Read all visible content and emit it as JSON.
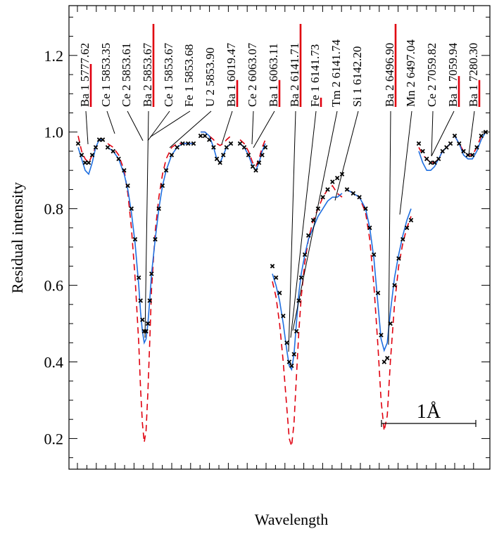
{
  "chart_data": {
    "type": "line",
    "ylabel": "Residual intensity",
    "xlabel": "Wavelength",
    "ylim": [
      0.12,
      1.33
    ],
    "yticks": [
      0.2,
      0.4,
      0.6,
      0.8,
      1.0,
      1.2
    ],
    "ytick_labels": [
      "0.2",
      "0.4",
      "0.6",
      "0.8",
      "1.0",
      "1.2"
    ],
    "scale_bar": "1Å",
    "grid": false,
    "colors": {
      "observed": "#000000",
      "model_solid": "#1f6fe0",
      "model_dashed": "#e0000f",
      "line_marker": "#e0000f"
    },
    "line_ids": [
      {
        "label": "Ba 1  5777.62",
        "strength": 0.5
      },
      {
        "label": "Ce 1  5853.35",
        "strength": 0.0
      },
      {
        "label": "Ce 2  5853.61",
        "strength": 0.0
      },
      {
        "label": "Ba 2  5853.67",
        "strength": 1.0
      },
      {
        "label": "Ce 1  5853.67",
        "strength": 0.0
      },
      {
        "label": "Fe 1  5853.68",
        "strength": 0.0
      },
      {
        "label": "U 2  5853.90",
        "strength": 0.0
      },
      {
        "label": "Ba 1  6019.47",
        "strength": 0.3
      },
      {
        "label": "Ce 2  6063.07",
        "strength": 0.0
      },
      {
        "label": "Ba 1  6063.11",
        "strength": 0.3
      },
      {
        "label": "Ba 2  6141.71",
        "strength": 1.0
      },
      {
        "label": "Fe 1  6141.73",
        "strength": 0.08
      },
      {
        "label": "Tm 2  6141.74",
        "strength": 0.0
      },
      {
        "label": "Si 1  6142.20",
        "strength": 0.0
      },
      {
        "label": "Ba 2  6496.90",
        "strength": 1.0
      },
      {
        "label": "Mn 2  6497.04",
        "strength": 0.0
      },
      {
        "label": "Ce 2  7059.82",
        "strength": 0.0
      },
      {
        "label": "Ba 1  7059.94",
        "strength": 0.35
      },
      {
        "label": "Ba 1  7280.30",
        "strength": 0.3
      }
    ],
    "segments": [
      {
        "x": [
          0.0,
          0.15,
          0.3,
          0.45,
          0.6,
          0.75,
          0.9,
          1.05
        ],
        "observed": [
          0.97,
          0.94,
          0.92,
          0.92,
          0.94,
          0.96,
          0.98,
          0.98
        ],
        "model_solid": [
          0.96,
          0.93,
          0.9,
          0.89,
          0.92,
          0.96,
          0.98,
          0.98
        ],
        "model_dashed": [
          0.99,
          0.95,
          0.93,
          0.92,
          0.94,
          0.96,
          0.98,
          0.98
        ]
      },
      {
        "x": [
          0.0,
          0.3,
          0.6,
          0.9,
          1.1,
          1.3,
          1.5,
          1.7,
          1.8,
          1.9,
          2.0,
          2.1,
          2.2,
          2.3,
          2.4,
          2.6,
          2.8,
          3.0,
          3.2,
          3.5,
          3.8,
          4.1,
          4.4,
          4.7
        ],
        "observed": [
          0.96,
          0.95,
          0.93,
          0.9,
          0.86,
          0.8,
          0.72,
          0.62,
          0.56,
          0.51,
          0.48,
          0.48,
          0.5,
          0.56,
          0.63,
          0.72,
          0.8,
          0.86,
          0.9,
          0.94,
          0.96,
          0.97,
          0.97,
          0.97
        ],
        "model_solid": [
          0.96,
          0.95,
          0.93,
          0.89,
          0.85,
          0.79,
          0.71,
          0.6,
          0.53,
          0.48,
          0.45,
          0.46,
          0.5,
          0.56,
          0.63,
          0.72,
          0.8,
          0.86,
          0.9,
          0.94,
          0.96,
          0.97,
          0.97,
          0.97
        ],
        "model_dashed": [
          0.97,
          0.96,
          0.94,
          0.9,
          0.84,
          0.75,
          0.62,
          0.45,
          0.33,
          0.24,
          0.19,
          0.22,
          0.32,
          0.45,
          0.59,
          0.74,
          0.83,
          0.89,
          0.93,
          0.96,
          0.97,
          0.97,
          0.97,
          0.97
        ]
      },
      {
        "x": [
          0.0,
          0.2,
          0.4,
          0.6,
          0.75,
          0.9,
          1.05,
          1.2,
          1.4
        ],
        "observed": [
          0.99,
          0.99,
          0.98,
          0.96,
          0.93,
          0.92,
          0.94,
          0.96,
          0.97
        ],
        "model_solid": [
          1.0,
          1.0,
          0.99,
          0.96,
          0.93,
          0.92,
          0.94,
          0.96,
          0.97
        ],
        "model_dashed": [
          1.0,
          1.0,
          0.99,
          0.98,
          0.97,
          0.965,
          0.97,
          0.98,
          0.99
        ]
      },
      {
        "x": [
          0.0,
          0.2,
          0.4,
          0.6,
          0.75,
          0.9,
          1.05,
          1.2
        ],
        "observed": [
          0.97,
          0.96,
          0.94,
          0.91,
          0.9,
          0.92,
          0.94,
          0.96
        ],
        "model_solid": [
          0.97,
          0.96,
          0.94,
          0.91,
          0.9,
          0.92,
          0.95,
          0.97
        ],
        "model_dashed": [
          0.98,
          0.97,
          0.95,
          0.92,
          0.91,
          0.93,
          0.96,
          0.98
        ]
      },
      {
        "x": [
          0.0,
          0.15,
          0.3,
          0.45,
          0.6,
          0.7,
          0.8,
          0.9,
          1.0,
          1.1,
          1.2,
          1.35,
          1.5,
          1.7,
          1.9,
          2.1,
          2.3,
          2.5,
          2.7,
          2.9
        ],
        "observed": [
          0.65,
          0.62,
          0.58,
          0.52,
          0.45,
          0.4,
          0.39,
          0.42,
          0.48,
          0.56,
          0.62,
          0.68,
          0.73,
          0.77,
          0.8,
          0.83,
          0.85,
          0.87,
          0.88,
          0.89
        ],
        "model_solid": [
          0.63,
          0.6,
          0.56,
          0.5,
          0.43,
          0.39,
          0.38,
          0.42,
          0.5,
          0.58,
          0.63,
          0.68,
          0.72,
          0.75,
          0.78,
          0.8,
          0.82,
          0.83,
          0.83,
          0.84
        ],
        "model_dashed": [
          0.61,
          0.57,
          0.5,
          0.4,
          0.28,
          0.2,
          0.18,
          0.24,
          0.36,
          0.48,
          0.57,
          0.66,
          0.72,
          0.77,
          0.8,
          0.83,
          0.85,
          0.86,
          0.84,
          0.83
        ]
      },
      {
        "x": [
          0.0,
          0.3,
          0.6,
          0.9,
          1.1,
          1.3,
          1.5,
          1.65,
          1.8,
          1.95,
          2.1,
          2.3,
          2.5,
          2.7,
          2.9,
          3.1
        ],
        "observed": [
          0.85,
          0.84,
          0.83,
          0.8,
          0.75,
          0.68,
          0.58,
          0.47,
          0.4,
          0.41,
          0.5,
          0.6,
          0.67,
          0.72,
          0.75,
          0.77
        ],
        "model_solid": [
          0.85,
          0.84,
          0.83,
          0.8,
          0.75,
          0.67,
          0.55,
          0.46,
          0.43,
          0.45,
          0.53,
          0.62,
          0.68,
          0.73,
          0.77,
          0.8
        ],
        "model_dashed": [
          0.85,
          0.84,
          0.83,
          0.79,
          0.72,
          0.6,
          0.44,
          0.3,
          0.22,
          0.26,
          0.4,
          0.55,
          0.65,
          0.71,
          0.75,
          0.78
        ]
      },
      {
        "x": [
          0.0,
          0.2,
          0.4,
          0.6,
          0.8,
          1.0,
          1.2,
          1.4,
          1.6
        ],
        "observed": [
          0.97,
          0.95,
          0.93,
          0.92,
          0.92,
          0.93,
          0.95,
          0.96,
          0.97
        ],
        "model_solid": [
          0.95,
          0.92,
          0.9,
          0.9,
          0.91,
          0.93,
          0.95,
          0.96,
          0.97
        ],
        "model_dashed": [
          0.96,
          0.94,
          0.93,
          0.92,
          0.92,
          0.93,
          0.95,
          0.96,
          0.97
        ]
      },
      {
        "x": [
          0.0,
          0.2,
          0.4,
          0.6,
          0.8,
          1.0,
          1.2,
          1.4
        ],
        "observed": [
          0.99,
          0.97,
          0.95,
          0.94,
          0.94,
          0.96,
          0.99,
          1.0
        ],
        "model_solid": [
          0.99,
          0.97,
          0.94,
          0.93,
          0.93,
          0.95,
          0.98,
          1.0
        ],
        "model_dashed": [
          0.99,
          0.97,
          0.95,
          0.94,
          0.94,
          0.96,
          0.99,
          1.0
        ]
      }
    ]
  }
}
